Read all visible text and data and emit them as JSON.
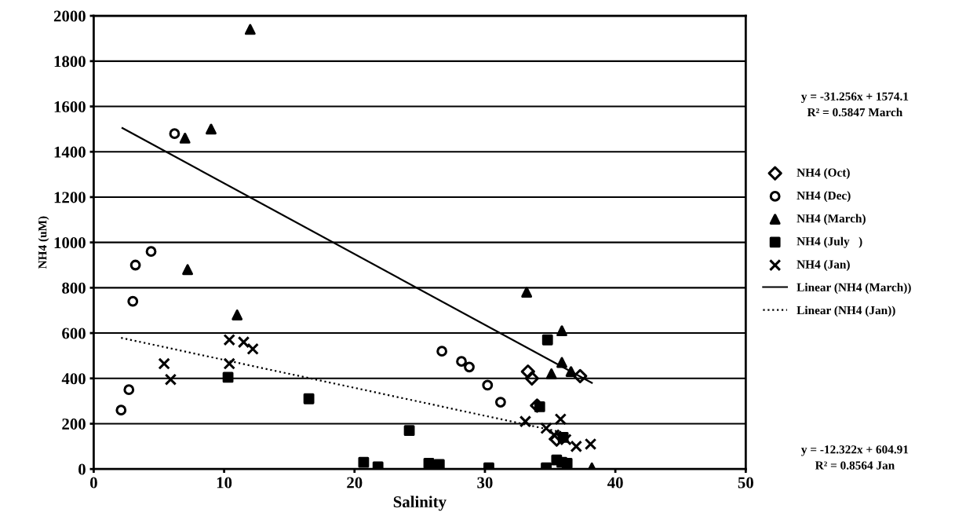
{
  "chart_data": {
    "type": "scatter",
    "xlabel": "Salinity",
    "ylabel": "NH4 (uM)",
    "xlim": [
      0,
      50
    ],
    "ylim": [
      0,
      2000
    ],
    "xticks": [
      0,
      10,
      20,
      30,
      40,
      50
    ],
    "yticks": [
      0,
      200,
      400,
      600,
      800,
      1000,
      1200,
      1400,
      1600,
      1800,
      2000
    ],
    "grid": "y",
    "legend": "right",
    "annotations": [
      "y = -31.256x + 1574.1\nR² = 0.5847 March",
      "y = -12.322x + 604.91\nR² = 0.8564 Jan"
    ],
    "series": [
      {
        "name": "NH4 (Oct)",
        "color": "#000000",
        "marker": "diamond",
        "x": [
          33.3,
          33.6,
          34,
          35.5,
          37.3
        ],
        "values": [
          430,
          400,
          280,
          130,
          410
        ]
      },
      {
        "name": "NH4 (Dec)",
        "color": "#000000",
        "marker": "circle",
        "x": [
          2.1,
          2.7,
          3,
          3.2,
          4.4,
          6.2,
          26.7,
          28.2,
          28.8,
          30.2,
          31.2
        ],
        "values": [
          260,
          350,
          740,
          900,
          960,
          1480,
          520,
          475,
          450,
          370,
          295
        ]
      },
      {
        "name": "NH4 (March)",
        "color": "#000000",
        "marker": "triangle",
        "x": [
          7,
          7.2,
          9,
          11,
          12,
          33.2,
          35.1,
          35.9,
          35.9,
          36.6,
          38.2
        ],
        "values": [
          1460,
          880,
          1500,
          680,
          1940,
          780,
          420,
          610,
          470,
          430,
          5
        ]
      },
      {
        "name": "NH4 (July   )",
        "color": "#000000",
        "marker": "square",
        "x": [
          10.3,
          16.5,
          20.7,
          21.8,
          24.2,
          25.7,
          26.5,
          30.3,
          34.2,
          34.8,
          34.7,
          35.5,
          35.9,
          36.3,
          36
        ],
        "values": [
          405,
          310,
          30,
          10,
          170,
          25,
          20,
          5,
          275,
          570,
          5,
          40,
          30,
          25,
          140
        ]
      },
      {
        "name": "NH4 (Jan)",
        "color": "#000000",
        "marker": "cross",
        "x": [
          5.4,
          5.9,
          10.4,
          10.4,
          11.5,
          12.2,
          33.1,
          34.7,
          35.8,
          35.3,
          36.2,
          37,
          38.1
        ],
        "values": [
          465,
          395,
          570,
          465,
          560,
          530,
          210,
          180,
          220,
          150,
          130,
          100,
          110
        ]
      },
      {
        "name": "Linear (NH4 (March))",
        "type": "line",
        "line_style": "solid",
        "color": "#000000",
        "x": [
          2.2,
          38.2
        ],
        "values": [
          1505,
          380
        ]
      },
      {
        "name": "Linear (NH4 (Jan))",
        "type": "line",
        "line_style": "dotted",
        "color": "#000000",
        "x": [
          2.1,
          36
        ],
        "values": [
          579,
          161
        ]
      }
    ]
  }
}
